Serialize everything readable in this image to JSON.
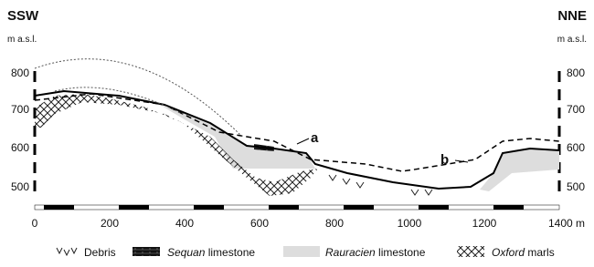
{
  "header": {
    "left_direction": "SSW",
    "right_direction": "NNE",
    "left_unit": "m a.s.l.",
    "right_unit": "m a.s.l."
  },
  "y_axis": {
    "labels": [
      "800",
      "700",
      "600",
      "500"
    ]
  },
  "x_axis": {
    "labels": [
      "0",
      "200",
      "400",
      "600",
      "800",
      "1000",
      "1200",
      "1400 m"
    ]
  },
  "annotations": [
    "a",
    "b"
  ],
  "legend": {
    "items": [
      {
        "label": "Debris"
      },
      {
        "label_italic": "Sequan",
        "label_rest": "limestone"
      },
      {
        "label_italic": "Rauracien",
        "label_rest": "limestone"
      },
      {
        "label_italic": "Oxford",
        "label_rest": "marls"
      }
    ]
  }
}
